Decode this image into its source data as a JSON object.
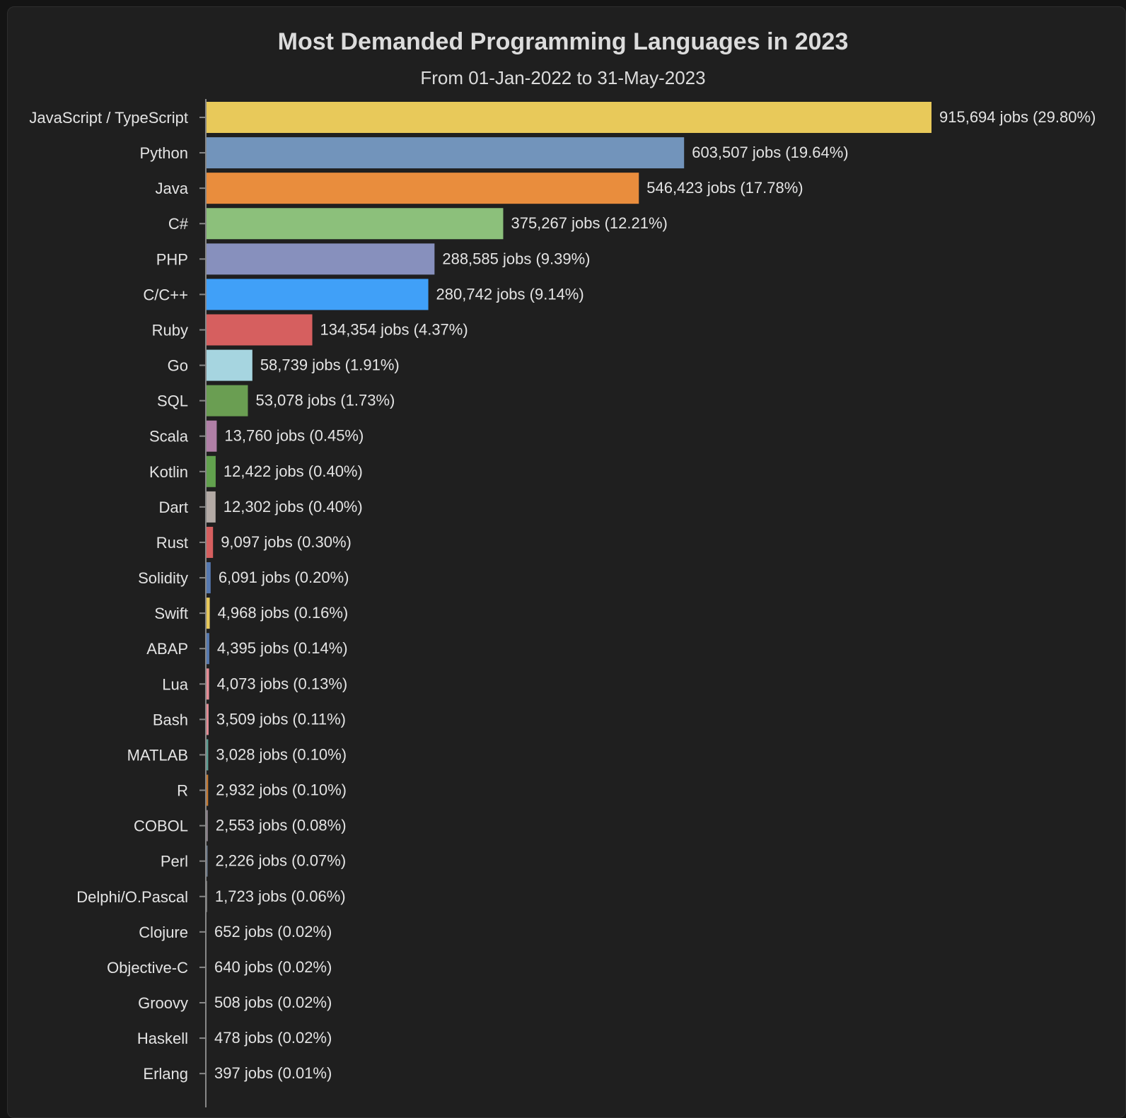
{
  "chart_data": {
    "type": "bar",
    "orientation": "horizontal",
    "title": "Most Demanded Programming Languages in 2023",
    "subtitle": "From 01-Jan-2022 to 31-May-2023",
    "xlabel": "",
    "ylabel": "",
    "grid": false,
    "categories": [
      "JavaScript / TypeScript",
      "Python",
      "Java",
      "C#",
      "PHP",
      "C/C++",
      "Ruby",
      "Go",
      "SQL",
      "Scala",
      "Kotlin",
      "Dart",
      "Rust",
      "Solidity",
      "Swift",
      "ABAP",
      "Lua",
      "Bash",
      "MATLAB",
      "R",
      "COBOL",
      "Perl",
      "Delphi/O.Pascal",
      "Clojure",
      "Objective-C",
      "Groovy",
      "Haskell",
      "Erlang"
    ],
    "values": [
      915694,
      603507,
      546423,
      375267,
      288585,
      280742,
      134354,
      58739,
      53078,
      13760,
      12422,
      12302,
      9097,
      6091,
      4968,
      4395,
      4073,
      3509,
      3028,
      2932,
      2553,
      2226,
      1723,
      652,
      640,
      508,
      478,
      397
    ],
    "labels": [
      "915,694 jobs (29.80%)",
      "603,507 jobs (19.64%)",
      "546,423 jobs (17.78%)",
      "375,267 jobs (12.21%)",
      "288,585 jobs (9.39%)",
      "280,742 jobs (9.14%)",
      "134,354 jobs (4.37%)",
      "58,739 jobs (1.91%)",
      "53,078 jobs (1.73%)",
      "13,760 jobs (0.45%)",
      "12,422 jobs (0.40%)",
      "12,302 jobs (0.40%)",
      "9,097 jobs (0.30%)",
      "6,091 jobs (0.20%)",
      "4,968 jobs (0.16%)",
      "4,395 jobs (0.14%)",
      "4,073 jobs (0.13%)",
      "3,509 jobs (0.11%)",
      "3,028 jobs (0.10%)",
      "2,932 jobs (0.10%)",
      "2,553 jobs (0.08%)",
      "2,226 jobs (0.07%)",
      "1,723 jobs (0.06%)",
      "652 jobs (0.02%)",
      "640 jobs (0.02%)",
      "508 jobs (0.02%)",
      "478 jobs (0.02%)",
      "397 jobs (0.01%)"
    ],
    "colors": [
      "#e8c95a",
      "#7294bb",
      "#e98d3d",
      "#8cc07b",
      "#8790bd",
      "#40a0f8",
      "#d65f5f",
      "#a6d5e0",
      "#6a9e52",
      "#b07fa6",
      "#62a24e",
      "#b3aaa5",
      "#d65f5f",
      "#5679b0",
      "#e8c95a",
      "#5679b0",
      "#e68c95",
      "#e68c95",
      "#5a9f94",
      "#c8782c",
      "#8a7f8a",
      "#6b7a8f",
      "#777777",
      "#777777",
      "#777777",
      "#777777",
      "#777777",
      "#777777"
    ],
    "xlim": [
      0,
      915694
    ]
  }
}
